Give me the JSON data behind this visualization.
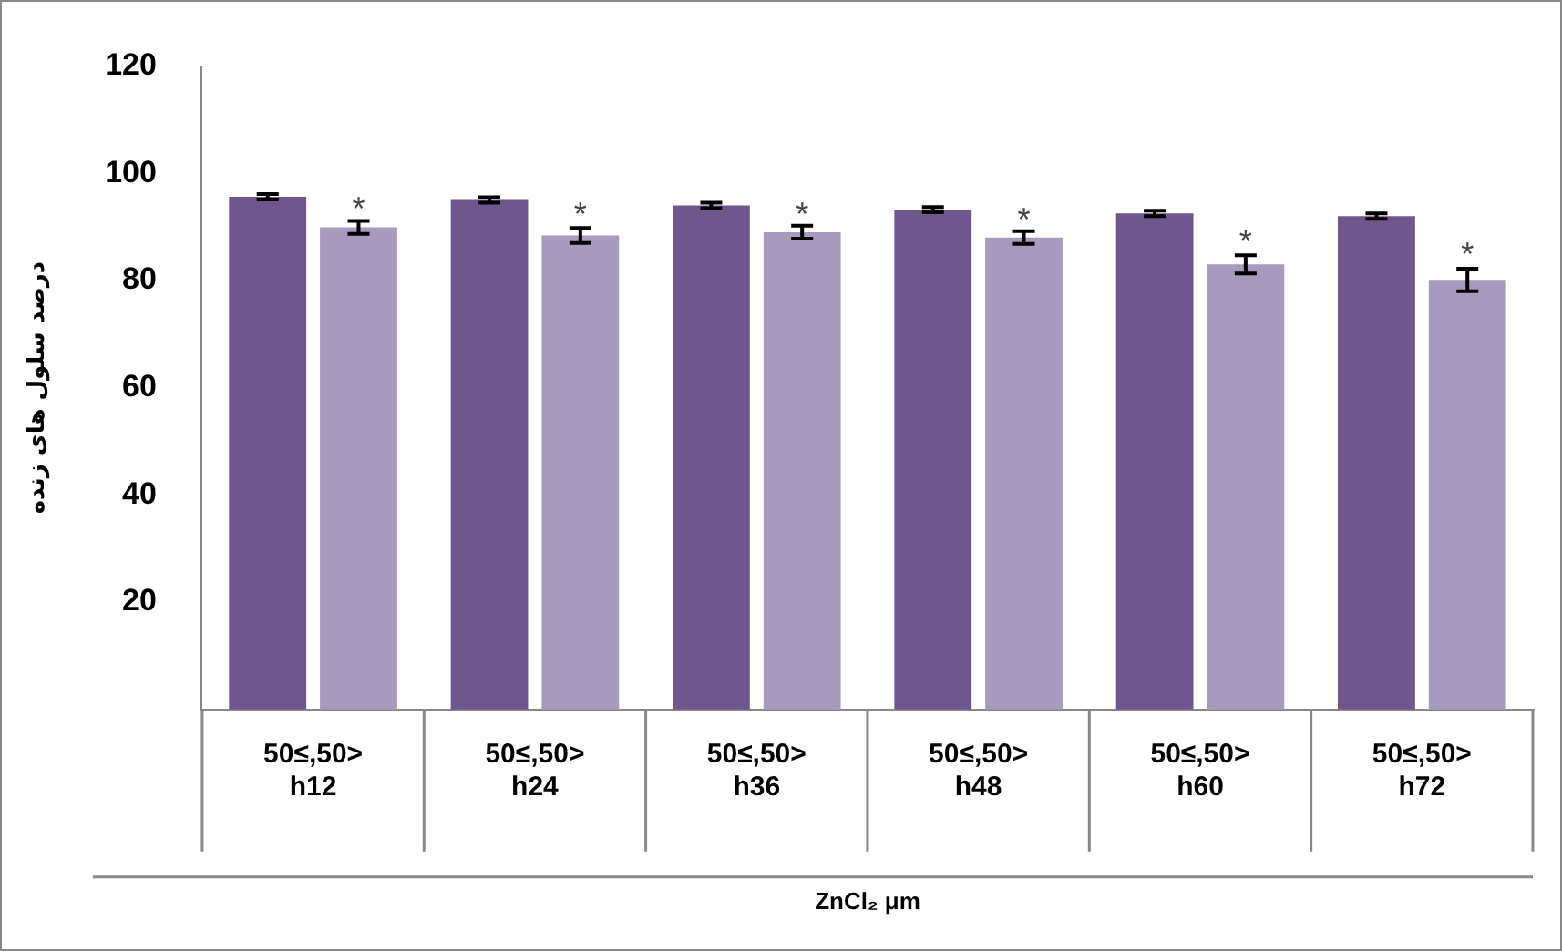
{
  "chart_data": {
    "type": "bar",
    "ylabel": "درصد سلول های زنده",
    "xlabel": "ZnCl₂ μm",
    "categories": [
      "50≤,50>\nh12",
      "50≤,50>\nh24",
      "50≤,50>\nh36",
      "50≤,50>\nh48",
      "50≤,50>\nh60",
      "50≤,50>\nh72"
    ],
    "series": [
      {
        "color": "#6f578d",
        "values": [
          95.6,
          95.0,
          94.0,
          93.2,
          92.5,
          92.0
        ],
        "errors": [
          0.5,
          0.5,
          0.5,
          0.5,
          0.5,
          0.5
        ]
      },
      {
        "color": "#a899bf",
        "values": [
          89.9,
          88.4,
          89.0,
          88.0,
          83.0,
          80.1
        ],
        "errors": [
          1.2,
          1.4,
          1.2,
          1.2,
          1.7,
          2.1
        ]
      }
    ],
    "ylim": [
      0,
      120
    ],
    "yticks": [
      20,
      40,
      60,
      80,
      100,
      120
    ],
    "grid": false,
    "legend": false,
    "annotations": [
      {
        "text": "*",
        "x": "50≤,50>\nh12",
        "y": 93
      },
      {
        "text": "*",
        "x": "50≤,50>\nh24",
        "y": 92
      },
      {
        "text": "*",
        "x": "50≤,50>\nh36",
        "y": 92
      },
      {
        "text": "*",
        "x": "50≤,50>\nh48",
        "y": 91
      },
      {
        "text": "*",
        "x": "50≤,50>\nh60",
        "y": 87
      },
      {
        "text": "*",
        "x": "50≤,50>\nh72",
        "y": 84.5
      }
    ]
  }
}
